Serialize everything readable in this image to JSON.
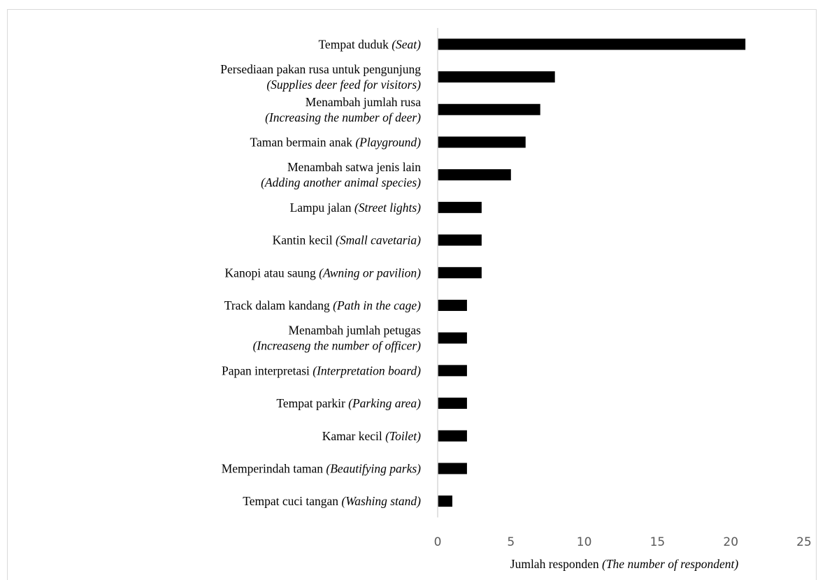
{
  "chart_data": {
    "type": "bar",
    "orientation": "horizontal",
    "categories": [
      {
        "lines": [
          {
            "text": "Tempat duduk ",
            "italic": "(Seat)"
          }
        ]
      },
      {
        "lines": [
          {
            "text": "Persediaan pakan rusa untuk pengunjung",
            "italic": ""
          },
          {
            "text": "",
            "italic": "(Supplies deer feed for visitors)"
          }
        ]
      },
      {
        "lines": [
          {
            "text": "Menambah jumlah rusa",
            "italic": ""
          },
          {
            "text": "",
            "italic": "(Increasing the number of deer)"
          }
        ]
      },
      {
        "lines": [
          {
            "text": "Taman bermain anak ",
            "italic": "(Playground)"
          }
        ]
      },
      {
        "lines": [
          {
            "text": "Menambah satwa jenis lain",
            "italic": ""
          },
          {
            "text": "",
            "italic": "(Adding another animal species)"
          }
        ]
      },
      {
        "lines": [
          {
            "text": "Lampu jalan ",
            "italic": "(Street lights)"
          }
        ]
      },
      {
        "lines": [
          {
            "text": "Kantin kecil ",
            "italic": "(Small cavetaria)"
          }
        ]
      },
      {
        "lines": [
          {
            "text": "Kanopi atau saung ",
            "italic": "(Awning or pavilion)"
          }
        ]
      },
      {
        "lines": [
          {
            "text": "Track dalam kandang ",
            "italic": "(Path in the cage)"
          }
        ]
      },
      {
        "lines": [
          {
            "text": "Menambah jumlah petugas",
            "italic": ""
          },
          {
            "text": "",
            "italic": "(Increaseng the number of officer)"
          }
        ]
      },
      {
        "lines": [
          {
            "text": "Papan interpretasi ",
            "italic": "(Interpretation board)"
          }
        ]
      },
      {
        "lines": [
          {
            "text": "Tempat parkir ",
            "italic": "(Parking area)"
          }
        ]
      },
      {
        "lines": [
          {
            "text": "Kamar kecil ",
            "italic": "(Toilet)"
          }
        ]
      },
      {
        "lines": [
          {
            "text": "Memperindah taman ",
            "italic": "(Beautifying parks)"
          }
        ]
      },
      {
        "lines": [
          {
            "text": "Tempat cuci tangan ",
            "italic": "(Washing stand)"
          }
        ]
      }
    ],
    "values": [
      21,
      8,
      7,
      6,
      5,
      3,
      3,
      3,
      2,
      2,
      2,
      2,
      2,
      2,
      1
    ],
    "xlim": [
      0,
      25
    ],
    "xticks": [
      0,
      5,
      10,
      15,
      20,
      25
    ],
    "xlabel": {
      "text": "Jumlah responden ",
      "italic": "(The number of respondent)"
    },
    "bar_color": "#000000",
    "axis_color": "#d9d9d9",
    "grid": false,
    "legend": "none"
  }
}
